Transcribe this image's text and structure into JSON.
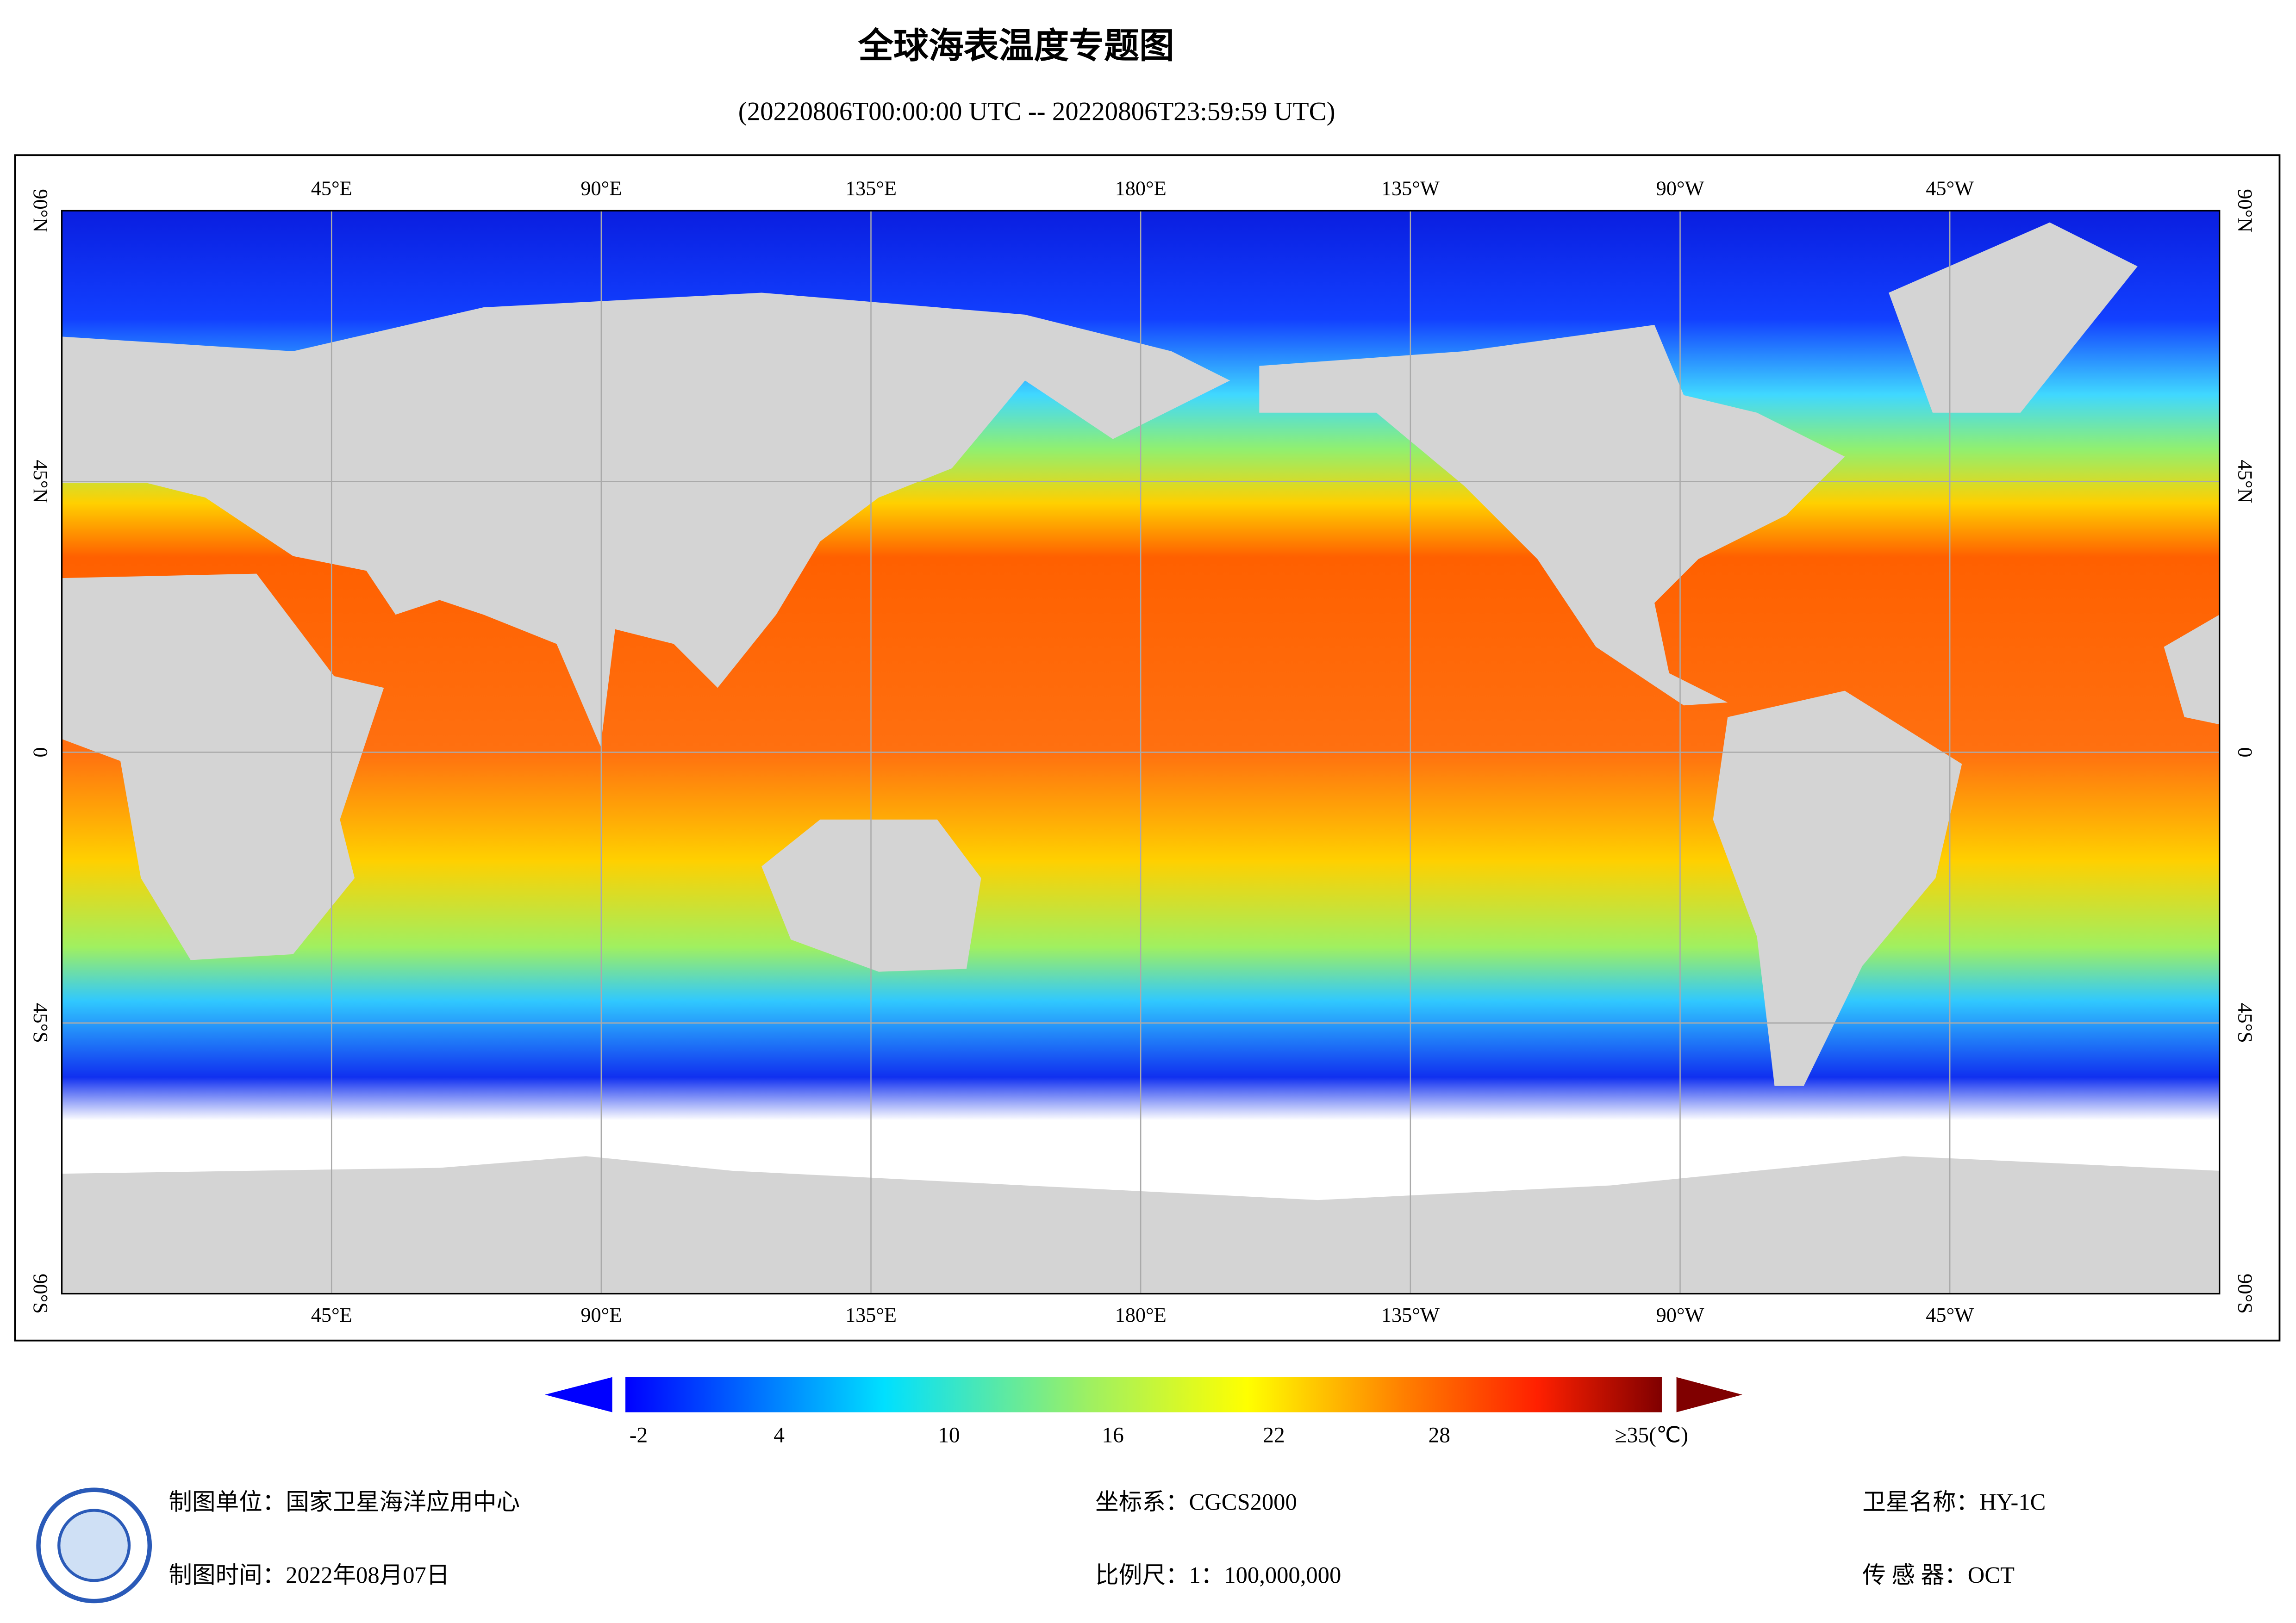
{
  "header": {
    "title": "全球海表温度专题图",
    "subtitle": "(20220806T00:00:00 UTC -- 20220806T23:59:59 UTC)"
  },
  "map": {
    "longitude_labels": [
      "45°E",
      "90°E",
      "135°E",
      "180°E",
      "135°W",
      "90°W",
      "45°W"
    ],
    "latitude_labels": [
      "90°N",
      "45°N",
      "0",
      "45°S",
      "90°S"
    ]
  },
  "colorbar": {
    "labels": [
      "-2",
      "4",
      "10",
      "16",
      "22",
      "28",
      "≥35(℃)"
    ]
  },
  "footer": {
    "unit": "制图单位：国家卫星海洋应用中心",
    "time": "制图时间：2022年08月07日",
    "crs": "坐标系：CGCS2000",
    "scale": "比例尺：1：100,000,000",
    "satellite": "卫星名称：HY-1C",
    "sensor": "传 感 器：OCT"
  }
}
